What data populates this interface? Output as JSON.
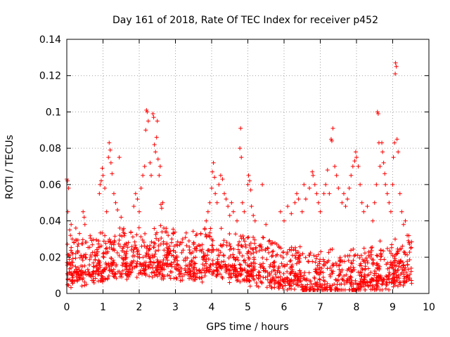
{
  "chart_data": {
    "type": "scatter",
    "title": "Day 161 of 2018, Rate Of TEC Index for receiver p452",
    "xlabel": "GPS time / hours",
    "ylabel": "ROTI / TECUs",
    "xlim": [
      0,
      10
    ],
    "ylim": [
      0,
      0.14
    ],
    "x_ticks": [
      0,
      1,
      2,
      3,
      4,
      5,
      6,
      7,
      8,
      9,
      10
    ],
    "x_tick_labels": [
      "0",
      "1",
      "2",
      "3",
      "4",
      "5",
      "6",
      "7",
      "8",
      "9",
      "10"
    ],
    "y_ticks": [
      0,
      0.02,
      0.04,
      0.06,
      0.08,
      0.1,
      0.12,
      0.14
    ],
    "y_tick_labels": [
      "0",
      "0.02",
      "0.04",
      "0.06",
      "0.08",
      "0.1",
      "0.12",
      "0.14"
    ],
    "grid": true,
    "marker": "+",
    "color": "#ff0000",
    "series": [
      {
        "name": "ROTI",
        "points": [
          [
            0.0,
            0.063
          ],
          [
            0.02,
            0.062
          ],
          [
            0.03,
            0.045
          ],
          [
            0.05,
            0.058
          ],
          [
            0.08,
            0.035
          ],
          [
            0.1,
            0.032
          ],
          [
            0.12,
            0.038
          ],
          [
            0.15,
            0.03
          ],
          [
            0.2,
            0.028
          ],
          [
            0.25,
            0.036
          ],
          [
            0.3,
            0.026
          ],
          [
            0.35,
            0.033
          ],
          [
            0.45,
            0.045
          ],
          [
            0.48,
            0.042
          ],
          [
            0.5,
            0.038
          ],
          [
            0.9,
            0.055
          ],
          [
            0.92,
            0.06
          ],
          [
            0.95,
            0.062
          ],
          [
            0.98,
            0.069
          ],
          [
            1.0,
            0.065
          ],
          [
            1.05,
            0.058
          ],
          [
            1.1,
            0.045
          ],
          [
            1.15,
            0.075
          ],
          [
            1.17,
            0.083
          ],
          [
            1.2,
            0.079
          ],
          [
            1.22,
            0.072
          ],
          [
            1.25,
            0.066
          ],
          [
            1.3,
            0.055
          ],
          [
            1.35,
            0.05
          ],
          [
            1.4,
            0.046
          ],
          [
            1.45,
            0.075
          ],
          [
            1.5,
            0.042
          ],
          [
            1.55,
            0.035
          ],
          [
            1.6,
            0.033
          ],
          [
            1.7,
            0.028
          ],
          [
            1.85,
            0.048
          ],
          [
            1.9,
            0.055
          ],
          [
            1.95,
            0.052
          ],
          [
            2.0,
            0.045
          ],
          [
            2.05,
            0.058
          ],
          [
            2.1,
            0.065
          ],
          [
            2.15,
            0.07
          ],
          [
            2.18,
            0.09
          ],
          [
            2.2,
            0.101
          ],
          [
            2.22,
            0.1
          ],
          [
            2.25,
            0.095
          ],
          [
            2.3,
            0.072
          ],
          [
            2.33,
            0.065
          ],
          [
            2.38,
            0.099
          ],
          [
            2.4,
            0.097
          ],
          [
            2.42,
            0.082
          ],
          [
            2.45,
            0.078
          ],
          [
            2.48,
            0.086
          ],
          [
            2.5,
            0.095
          ],
          [
            2.52,
            0.074
          ],
          [
            2.55,
            0.065
          ],
          [
            2.58,
            0.07
          ],
          [
            2.6,
            0.049
          ],
          [
            2.62,
            0.047
          ],
          [
            2.65,
            0.05
          ],
          [
            2.68,
            0.036
          ],
          [
            2.72,
            0.034
          ],
          [
            2.8,
            0.032
          ],
          [
            2.9,
            0.03
          ],
          [
            3.2,
            0.03
          ],
          [
            3.5,
            0.028
          ],
          [
            3.7,
            0.033
          ],
          [
            3.85,
            0.04
          ],
          [
            3.9,
            0.045
          ],
          [
            3.95,
            0.05
          ],
          [
            4.0,
            0.058
          ],
          [
            4.02,
            0.067
          ],
          [
            4.05,
            0.072
          ],
          [
            4.08,
            0.064
          ],
          [
            4.1,
            0.055
          ],
          [
            4.15,
            0.05
          ],
          [
            4.2,
            0.06
          ],
          [
            4.25,
            0.065
          ],
          [
            4.3,
            0.063
          ],
          [
            4.35,
            0.055
          ],
          [
            4.4,
            0.052
          ],
          [
            4.45,
            0.048
          ],
          [
            4.5,
            0.043
          ],
          [
            4.55,
            0.05
          ],
          [
            4.6,
            0.045
          ],
          [
            4.7,
            0.04
          ],
          [
            4.78,
            0.08
          ],
          [
            4.8,
            0.091
          ],
          [
            4.82,
            0.075
          ],
          [
            4.85,
            0.05
          ],
          [
            4.9,
            0.045
          ],
          [
            5.0,
            0.06
          ],
          [
            5.02,
            0.065
          ],
          [
            5.05,
            0.062
          ],
          [
            5.08,
            0.057
          ],
          [
            5.1,
            0.048
          ],
          [
            5.15,
            0.043
          ],
          [
            5.2,
            0.04
          ],
          [
            5.4,
            0.06
          ],
          [
            5.5,
            0.038
          ],
          [
            5.9,
            0.045
          ],
          [
            6.0,
            0.04
          ],
          [
            6.1,
            0.048
          ],
          [
            6.2,
            0.044
          ],
          [
            6.3,
            0.05
          ],
          [
            6.35,
            0.055
          ],
          [
            6.4,
            0.052
          ],
          [
            6.5,
            0.045
          ],
          [
            6.55,
            0.06
          ],
          [
            6.6,
            0.052
          ],
          [
            6.7,
            0.058
          ],
          [
            6.78,
            0.067
          ],
          [
            6.8,
            0.065
          ],
          [
            6.85,
            0.06
          ],
          [
            6.9,
            0.055
          ],
          [
            6.95,
            0.05
          ],
          [
            7.0,
            0.045
          ],
          [
            7.1,
            0.055
          ],
          [
            7.15,
            0.06
          ],
          [
            7.2,
            0.068
          ],
          [
            7.25,
            0.055
          ],
          [
            7.3,
            0.085
          ],
          [
            7.32,
            0.084
          ],
          [
            7.35,
            0.091
          ],
          [
            7.4,
            0.07
          ],
          [
            7.45,
            0.065
          ],
          [
            7.5,
            0.058
          ],
          [
            7.6,
            0.05
          ],
          [
            7.65,
            0.055
          ],
          [
            7.7,
            0.048
          ],
          [
            7.75,
            0.052
          ],
          [
            7.8,
            0.058
          ],
          [
            7.85,
            0.065
          ],
          [
            7.9,
            0.07
          ],
          [
            7.95,
            0.073
          ],
          [
            7.98,
            0.078
          ],
          [
            8.0,
            0.075
          ],
          [
            8.05,
            0.07
          ],
          [
            8.1,
            0.06
          ],
          [
            8.15,
            0.05
          ],
          [
            8.2,
            0.045
          ],
          [
            8.3,
            0.048
          ],
          [
            8.45,
            0.04
          ],
          [
            8.5,
            0.05
          ],
          [
            8.55,
            0.06
          ],
          [
            8.58,
            0.1
          ],
          [
            8.6,
            0.099
          ],
          [
            8.62,
            0.083
          ],
          [
            8.65,
            0.07
          ],
          [
            8.7,
            0.083
          ],
          [
            8.72,
            0.078
          ],
          [
            8.75,
            0.072
          ],
          [
            8.78,
            0.066
          ],
          [
            8.8,
            0.06
          ],
          [
            8.85,
            0.055
          ],
          [
            8.9,
            0.05
          ],
          [
            8.95,
            0.045
          ],
          [
            9.0,
            0.06
          ],
          [
            9.02,
            0.075
          ],
          [
            9.05,
            0.083
          ],
          [
            9.07,
            0.121
          ],
          [
            9.08,
            0.127
          ],
          [
            9.1,
            0.125
          ],
          [
            9.12,
            0.085
          ],
          [
            9.15,
            0.078
          ],
          [
            9.2,
            0.055
          ],
          [
            9.25,
            0.045
          ],
          [
            9.3,
            0.038
          ],
          [
            9.35,
            0.04
          ],
          [
            9.4,
            0.032
          ],
          [
            9.45,
            0.028
          ],
          [
            9.5,
            0.025
          ]
        ]
      }
    ]
  }
}
